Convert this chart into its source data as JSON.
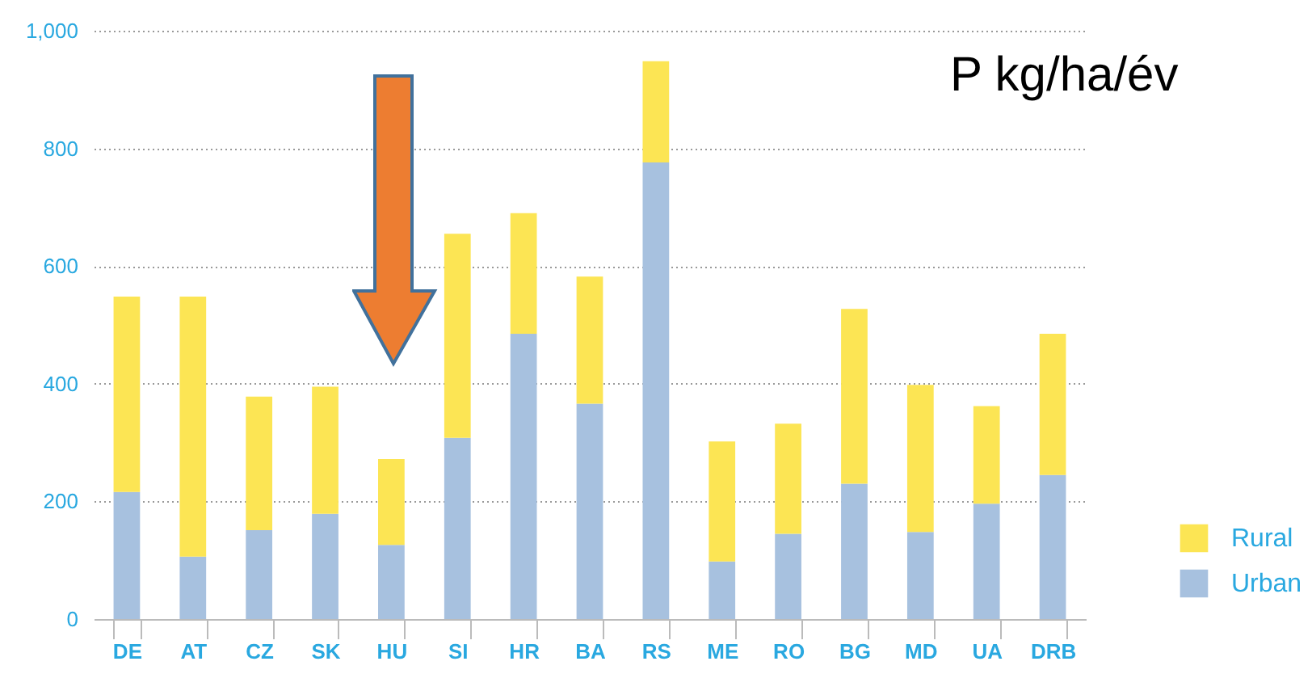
{
  "chart_data": {
    "type": "bar",
    "stacked": true,
    "categories": [
      "DE",
      "AT",
      "CZ",
      "SK",
      "HU",
      "SI",
      "HR",
      "BA",
      "RS",
      "ME",
      "RO",
      "BG",
      "MD",
      "UA",
      "DRB"
    ],
    "series": [
      {
        "name": "Urban",
        "color": "#a7c1df",
        "values": [
          216,
          106,
          151,
          179,
          126,
          308,
          485,
          366,
          776,
          98,
          145,
          230,
          148,
          196,
          245
        ]
      },
      {
        "name": "Rural",
        "color": "#fce554",
        "values": [
          332,
          442,
          227,
          216,
          146,
          347,
          205,
          216,
          172,
          204,
          187,
          297,
          250,
          166,
          240
        ]
      }
    ],
    "ylim": [
      0,
      1000
    ],
    "yticks": [
      0,
      200,
      400,
      600,
      800,
      {
        "value": 1000,
        "label": "1,000"
      }
    ],
    "grid": "y",
    "legend": "bottom right",
    "annotations": [
      "P kg/ha/év"
    ]
  }
}
